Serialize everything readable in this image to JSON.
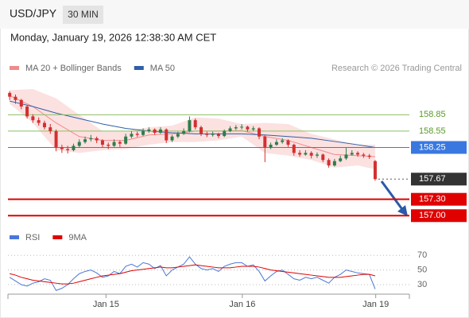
{
  "header": {
    "symbol": "USD/JPY",
    "timeframe": "30 MIN",
    "datetime": "Monday, January 19, 2026 12:38:30 AM CET"
  },
  "chart_data": [
    {
      "type": "candlestick",
      "legend": [
        {
          "name": "MA 20 + Bollinger Bands",
          "color": "#f08a8a"
        },
        {
          "name": "MA 50",
          "color": "#2f5fa8"
        }
      ],
      "credit": "Research © 2026 Trading Central",
      "xlim": [
        -0.3,
        68.9
      ],
      "ylim": [
        156.8,
        159.35
      ],
      "xticks": [
        {
          "value": 16.6,
          "label": "Jan 15"
        },
        {
          "value": 40.1,
          "label": "Jan 16"
        },
        {
          "value": 63.1,
          "label": "Jan 19"
        }
      ],
      "up_color": "#2e7d4a",
      "down_color": "#d32f2f",
      "candles": [
        [
          159.25,
          159.28,
          159.12,
          159.18
        ],
        [
          159.18,
          159.22,
          159.05,
          159.12
        ],
        [
          159.12,
          159.14,
          158.95,
          159.0
        ],
        [
          159.0,
          159.03,
          158.78,
          158.82
        ],
        [
          158.82,
          158.86,
          158.7,
          158.75
        ],
        [
          158.75,
          158.8,
          158.65,
          158.7
        ],
        [
          158.7,
          158.74,
          158.58,
          158.62
        ],
        [
          158.62,
          158.68,
          158.5,
          158.55
        ],
        [
          158.55,
          158.58,
          158.18,
          158.25
        ],
        [
          158.25,
          158.3,
          158.15,
          158.22
        ],
        [
          158.22,
          158.28,
          158.14,
          158.2
        ],
        [
          158.2,
          158.32,
          158.18,
          158.28
        ],
        [
          158.28,
          158.4,
          158.25,
          158.35
        ],
        [
          158.35,
          158.45,
          158.32,
          158.4
        ],
        [
          158.4,
          158.48,
          158.36,
          158.42
        ],
        [
          158.42,
          158.45,
          158.33,
          158.38
        ],
        [
          158.38,
          158.4,
          158.25,
          158.3
        ],
        [
          158.3,
          158.34,
          158.22,
          158.28
        ],
        [
          158.28,
          158.4,
          158.26,
          158.35
        ],
        [
          158.35,
          158.38,
          158.26,
          158.32
        ],
        [
          158.32,
          158.5,
          158.3,
          158.45
        ],
        [
          158.45,
          158.55,
          158.42,
          158.5
        ],
        [
          158.5,
          158.54,
          158.44,
          158.48
        ],
        [
          158.48,
          158.6,
          158.46,
          158.55
        ],
        [
          158.55,
          158.62,
          158.52,
          158.58
        ],
        [
          158.58,
          158.6,
          158.48,
          158.52
        ],
        [
          158.52,
          158.62,
          158.5,
          158.58
        ],
        [
          158.58,
          158.6,
          158.33,
          158.38
        ],
        [
          158.38,
          158.48,
          158.35,
          158.45
        ],
        [
          158.45,
          158.54,
          158.42,
          158.5
        ],
        [
          158.5,
          158.6,
          158.48,
          158.55
        ],
        [
          158.55,
          158.82,
          158.53,
          158.75
        ],
        [
          158.75,
          158.78,
          158.58,
          158.62
        ],
        [
          158.62,
          158.65,
          158.46,
          158.5
        ],
        [
          158.5,
          158.54,
          158.44,
          158.48
        ],
        [
          158.48,
          158.54,
          158.45,
          158.5
        ],
        [
          158.5,
          158.52,
          158.42,
          158.46
        ],
        [
          158.46,
          158.58,
          158.44,
          158.55
        ],
        [
          158.55,
          158.64,
          158.53,
          158.6
        ],
        [
          158.6,
          158.66,
          158.57,
          158.62
        ],
        [
          158.62,
          158.68,
          158.58,
          158.63
        ],
        [
          158.63,
          158.65,
          158.54,
          158.58
        ],
        [
          158.58,
          158.64,
          158.55,
          158.6
        ],
        [
          158.6,
          158.62,
          158.4,
          158.45
        ],
        [
          158.45,
          158.48,
          157.98,
          158.25
        ],
        [
          158.25,
          158.34,
          158.22,
          158.3
        ],
        [
          158.3,
          158.4,
          158.28,
          158.35
        ],
        [
          158.35,
          158.42,
          158.32,
          158.38
        ],
        [
          158.38,
          158.4,
          158.26,
          158.3
        ],
        [
          158.3,
          158.32,
          158.1,
          158.15
        ],
        [
          158.15,
          158.2,
          158.08,
          158.12
        ],
        [
          158.12,
          158.2,
          158.1,
          158.15
        ],
        [
          158.15,
          158.18,
          158.05,
          158.1
        ],
        [
          158.1,
          158.16,
          158.06,
          158.12
        ],
        [
          158.12,
          158.14,
          157.98,
          158.02
        ],
        [
          158.02,
          158.05,
          157.88,
          157.92
        ],
        [
          157.92,
          158.04,
          157.9,
          158.0
        ],
        [
          158.0,
          158.1,
          157.98,
          158.05
        ],
        [
          158.05,
          158.24,
          158.02,
          158.12
        ],
        [
          158.12,
          158.2,
          158.1,
          158.15
        ],
        [
          158.15,
          158.18,
          158.08,
          158.12
        ],
        [
          158.12,
          158.15,
          158.06,
          158.1
        ],
        [
          158.1,
          158.13,
          158.04,
          158.08
        ],
        [
          158.0,
          158.02,
          157.64,
          157.67
        ]
      ],
      "ma_x": [
        0,
        4,
        8,
        12,
        16,
        20,
        24,
        28,
        32,
        36,
        40,
        44,
        48,
        52,
        56,
        60,
        63
      ],
      "bb_upper": [
        159.3,
        159.32,
        159.15,
        158.85,
        158.55,
        158.55,
        158.62,
        158.65,
        158.8,
        158.78,
        158.68,
        158.7,
        158.68,
        158.5,
        158.4,
        158.3,
        158.3
      ],
      "bb_lower": [
        159.05,
        158.7,
        158.2,
        158.15,
        158.2,
        158.22,
        158.3,
        158.35,
        158.35,
        158.38,
        158.45,
        158.15,
        158.1,
        158.02,
        157.88,
        157.92,
        157.85
      ],
      "ma20": [
        159.2,
        159.0,
        158.7,
        158.45,
        158.38,
        158.38,
        158.48,
        158.5,
        158.55,
        158.55,
        158.56,
        158.45,
        158.38,
        158.25,
        158.12,
        158.1,
        158.08
      ],
      "ma50": [
        159.1,
        159.0,
        158.88,
        158.78,
        158.68,
        158.6,
        158.55,
        158.52,
        158.5,
        158.5,
        158.5,
        158.48,
        158.45,
        158.42,
        158.36,
        158.3,
        158.25
      ],
      "levels": [
        {
          "value": 158.85,
          "color": "#8cc063",
          "text_color": "#5a9a2a"
        },
        {
          "value": 158.55,
          "color": "#8cc063",
          "text_color": "#5a9a2a"
        },
        {
          "value": 158.25,
          "color": "#3a78e0",
          "box": "#3a78e0"
        },
        {
          "value": 157.67,
          "color": "#555555",
          "box": "#333333",
          "dotted": true
        },
        {
          "value": 157.3,
          "label": "157.30",
          "color": "#e00000",
          "box": "#e00000"
        },
        {
          "value": 157,
          "label": "157.00",
          "color": "#e00000",
          "box": "#e00000"
        }
      ]
    },
    {
      "type": "line",
      "xlim": [
        -0.3,
        68.9
      ],
      "ylim": [
        17,
        80
      ],
      "yticks": [
        70,
        50,
        30
      ],
      "series": [
        {
          "name": "RSI",
          "color": "#4a78d8",
          "values": [
            40,
            35,
            30,
            28,
            32,
            34,
            38,
            36,
            22,
            25,
            30,
            38,
            45,
            48,
            50,
            46,
            40,
            42,
            48,
            45,
            55,
            58,
            54,
            60,
            58,
            52,
            56,
            42,
            50,
            54,
            58,
            68,
            58,
            52,
            50,
            52,
            48,
            55,
            58,
            60,
            60,
            55,
            57,
            48,
            35,
            42,
            48,
            50,
            44,
            38,
            36,
            40,
            38,
            40,
            36,
            32,
            40,
            44,
            50,
            48,
            46,
            45,
            44,
            24
          ]
        },
        {
          "name": "9MA",
          "color": "#e00000",
          "values": [
            45,
            43,
            40,
            38,
            36,
            35,
            34,
            33,
            32,
            31,
            31,
            32,
            34,
            36,
            38,
            40,
            42,
            43,
            44,
            45,
            47,
            49,
            50,
            51,
            52,
            53,
            54,
            53,
            53,
            54,
            55,
            56,
            57,
            56,
            55,
            54,
            53,
            53,
            53,
            54,
            55,
            55,
            55,
            54,
            52,
            50,
            49,
            48,
            47,
            46,
            45,
            44,
            43,
            42,
            41,
            40,
            40,
            40,
            41,
            42,
            43,
            44,
            44,
            42
          ]
        }
      ]
    }
  ]
}
